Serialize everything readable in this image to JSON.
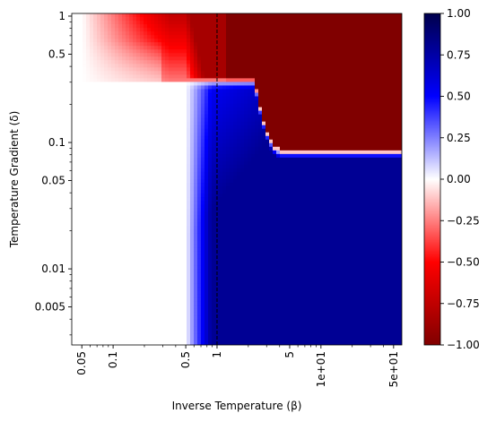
{
  "chart_data": {
    "type": "heatmap",
    "title": "",
    "xlabel": "Inverse Temperature (β)",
    "ylabel": "Temperature Gradient (δ)",
    "x_scale": "log",
    "y_scale": "log",
    "xlim": [
      0.04,
      60
    ],
    "ylim": [
      0.0025,
      1.05
    ],
    "x_ticks": [
      {
        "value": 0.05,
        "label": "0.05"
      },
      {
        "value": 0.1,
        "label": "0.1"
      },
      {
        "value": 0.5,
        "label": "0.5"
      },
      {
        "value": 1,
        "label": "1"
      },
      {
        "value": 5,
        "label": "5"
      },
      {
        "value": 10,
        "label": "1e+01"
      },
      {
        "value": 50,
        "label": "5e+01"
      }
    ],
    "y_ticks": [
      {
        "value": 0.005,
        "label": "0.005"
      },
      {
        "value": 0.01,
        "label": "0.01"
      },
      {
        "value": 0.05,
        "label": "0.05"
      },
      {
        "value": 0.1,
        "label": "0.1"
      },
      {
        "value": 0.5,
        "label": "0.5"
      },
      {
        "value": 1,
        "label": "1"
      }
    ],
    "reference_line": {
      "axis": "x",
      "value": 1,
      "style": "dashed",
      "color": "#000000"
    },
    "colormap": "seismic_r",
    "value_range": [
      -1,
      1
    ],
    "colorbar": {
      "ticks": [
        {
          "value": 1.0,
          "label": "1.00"
        },
        {
          "value": 0.75,
          "label": "0.75"
        },
        {
          "value": 0.5,
          "label": "0.50"
        },
        {
          "value": 0.25,
          "label": "0.25"
        },
        {
          "value": 0.0,
          "label": "0.00"
        },
        {
          "value": -0.25,
          "label": "−0.25"
        },
        {
          "value": -0.5,
          "label": "−0.50"
        },
        {
          "value": -0.75,
          "label": "−0.75"
        },
        {
          "value": -1.0,
          "label": "−1.00"
        }
      ]
    },
    "regions": {
      "boundary_delta_low_beta": 0.3,
      "boundary_delta_high_beta": 0.083,
      "onset_beta": 0.5,
      "saturated_negative": -1.0,
      "saturated_positive": 1.0
    }
  }
}
